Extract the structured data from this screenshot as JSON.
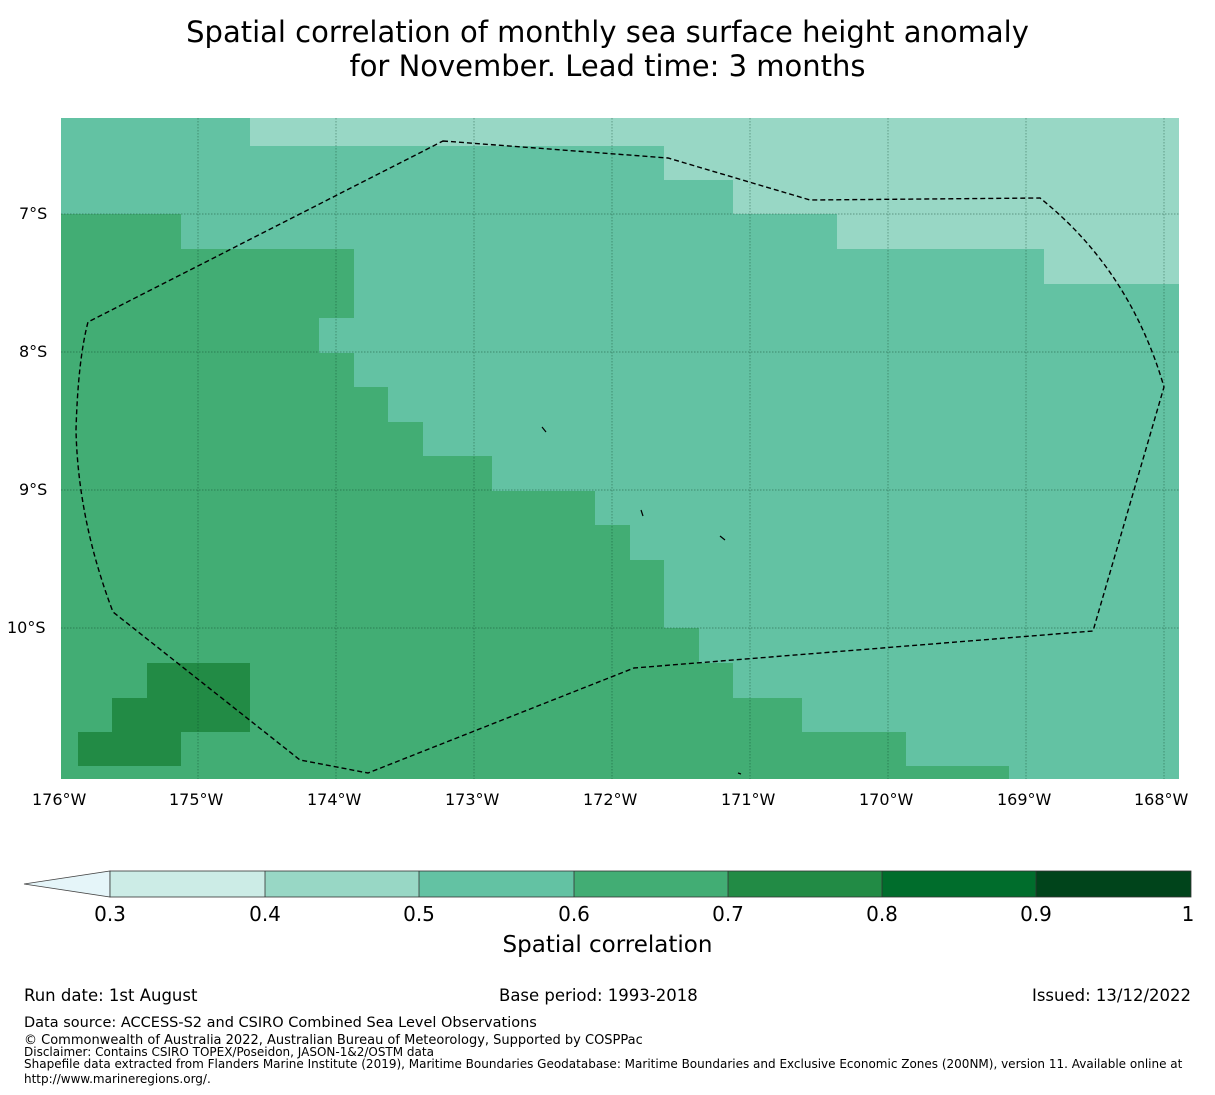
{
  "title": {
    "line1": "Spatial correlation of monthly sea surface height anomaly",
    "line2": "for November. Lead time: 3 months"
  },
  "map": {
    "type": "gridded-raster",
    "variable": "Spatial correlation",
    "lon_range": [
      "176°W",
      "168°W"
    ],
    "lat_range": [
      "~6.3°S",
      "~11.1°S"
    ],
    "gridlines": true,
    "boundary_style": "dashed black polygon (EEZ)",
    "lat_labels": [
      "7°S",
      "8°S",
      "9°S",
      "10°S"
    ],
    "lon_labels": [
      "176°W",
      "175°W",
      "174°W",
      "173°W",
      "172°W",
      "171°W",
      "170°W",
      "169°W",
      "168°W"
    ],
    "class_colors": {
      "0.4-0.5": "#98d7c5",
      "0.5-0.6": "#63c2a3",
      "0.6-0.7": "#42ad74",
      "0.7-0.8": "#228b45"
    }
  },
  "colorbar": {
    "title": "Spatial correlation",
    "ticks": [
      "0.3",
      "0.4",
      "0.5",
      "0.6",
      "0.7",
      "0.8",
      "0.9",
      "1"
    ],
    "under_color": "#e5f5f9",
    "colors": [
      "#ccece6",
      "#98d7c5",
      "#63c2a3",
      "#42ad74",
      "#228b45",
      "#006d2c",
      "#00441b"
    ],
    "extend": "min"
  },
  "footer": {
    "run_date": "Run date: 1st August",
    "base_period": "Base period: 1993-2018",
    "issued": "Issued: 13/12/2022",
    "data_source": "Data source: ACCESS-S2 and CSIRO Combined Sea Level Observations",
    "copyright": "© Commonwealth of Australia 2022, Australian Bureau of Meteorology, Supported by COSPPac",
    "disclaimer": "Disclaimer: Contains CSIRO TOPEX/Poseidon, JASON-1&2/OSTM data",
    "shapefile_line1": "Shapefile data extracted from Flanders Marine Institute (2019), Maritime Boundaries Geodatabase: Maritime Boundaries and Exclusive Economic Zones (200NM), version 11. Available online at",
    "shapefile_line2": "http://www.marineregions.org/."
  }
}
